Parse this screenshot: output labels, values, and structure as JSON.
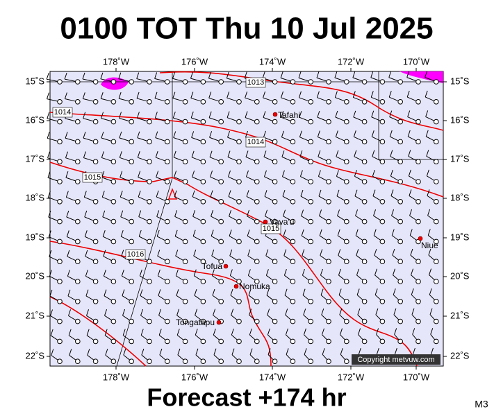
{
  "title": "0100 TOT Thu 10 Jul 2025",
  "map": {
    "lon_labels": [
      "178˚W",
      "176˚W",
      "174˚W",
      "172˚W",
      "170˚W"
    ],
    "lat_labels": [
      "15˚S",
      "16˚S",
      "17˚S",
      "18˚S",
      "19˚S",
      "20˚S",
      "21˚S",
      "22˚S"
    ],
    "isobar_labels": [
      "1013",
      "1014",
      "1014",
      "1015",
      "1015",
      "1016"
    ],
    "places": [
      "Tafahi",
      "Vava'u",
      "Niue",
      "Tofua",
      "Nomuka",
      "Tongatapu"
    ],
    "copyright": "Copyright metvuw.com"
  },
  "footer": "Forecast +174 hr",
  "model": "M3"
}
